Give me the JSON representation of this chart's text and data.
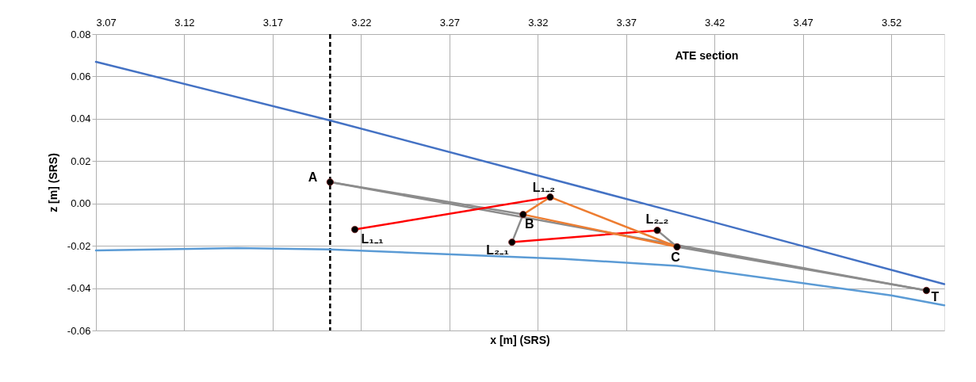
{
  "chart_data": {
    "type": "line",
    "xlabel": "x [m] (SRS)",
    "ylabel": "z [m] (SRS)",
    "xlim": [
      3.07,
      3.55
    ],
    "xticks": [
      3.07,
      3.12,
      3.17,
      3.22,
      3.27,
      3.32,
      3.37,
      3.42,
      3.47,
      3.52
    ],
    "ylim": [
      -0.06,
      0.08
    ],
    "yticks": [
      -0.06,
      -0.04,
      -0.02,
      {
        "value": 0,
        "label": "0.00"
      },
      0.02,
      0.04,
      0.06,
      0.08
    ],
    "grid": true,
    "line_style": "solid",
    "marker": "none",
    "series": [
      {
        "color": "#4472c4",
        "x": [
          3.07,
          3.2025,
          3.41,
          3.55
        ],
        "values": [
          0.0669,
          0.0392,
          -0.0067,
          -0.0381
        ]
      },
      {
        "color": "#5b9bd5",
        "x": [
          3.07,
          3.15,
          3.2025,
          3.335,
          3.3988,
          3.52,
          3.55
        ],
        "values": [
          -0.0222,
          -0.0211,
          -0.0217,
          -0.0262,
          -0.0295,
          -0.0434,
          -0.0481
        ]
      },
      {
        "color": "#8c8c8c",
        "x": [
          3.2025,
          3.5399
        ],
        "values": [
          0.0101,
          -0.0411
        ]
      },
      {
        "color": "#8c8c8c",
        "x": [
          3.2025,
          3.3117,
          3.3054
        ],
        "values": [
          0.0101,
          -0.0052,
          -0.0183
        ]
      },
      {
        "color": "#8c8c8c",
        "x": [
          3.3876,
          3.3988,
          3.5399
        ],
        "values": [
          -0.0127,
          -0.0205,
          -0.0411
        ]
      },
      {
        "color": "#ff0000",
        "x": [
          3.2165,
          3.327
        ],
        "values": [
          -0.0123,
          0.003
        ]
      },
      {
        "color": "#ff0000",
        "x": [
          3.3054,
          3.3876
        ],
        "values": [
          -0.0183,
          -0.0127
        ]
      },
      {
        "color": "#ed7d31",
        "x": [
          3.327,
          3.3117,
          3.3988
        ],
        "values": [
          0.003,
          -0.0052,
          -0.0205
        ]
      },
      {
        "color": "#ed7d31",
        "x": [
          3.327,
          3.3988
        ],
        "values": [
          0.003,
          -0.0205
        ]
      },
      {
        "type": "scatter",
        "marker": "circle",
        "color": "#000000",
        "x": [
          3.2025,
          3.2165,
          3.327,
          3.3117,
          3.3054,
          3.3876,
          3.3988,
          3.5399
        ],
        "values": [
          0.0101,
          -0.0123,
          0.003,
          -0.0052,
          -0.0183,
          -0.0127,
          -0.0205,
          -0.0411
        ]
      }
    ],
    "ref_lines": [
      {
        "axis": "x",
        "value": 3.2025,
        "color": "#000000",
        "line_style": "dashed"
      }
    ],
    "annotations": [
      "ATE section",
      {
        "text": "A",
        "x": 3.2025,
        "y": 0.0101
      },
      {
        "text": "L₁₋₁",
        "x": 3.2165,
        "y": -0.0123
      },
      {
        "text": "L₁₋₂",
        "x": 3.327,
        "y": 0.003
      },
      {
        "text": "B",
        "x": 3.3117,
        "y": -0.0052
      },
      {
        "text": "L₂₋₁",
        "x": 3.3054,
        "y": -0.0183
      },
      {
        "text": "L₂₋₂",
        "x": 3.3876,
        "y": -0.0127
      },
      {
        "text": "C",
        "x": 3.3988,
        "y": -0.0205
      },
      {
        "text": "T",
        "x": 3.5399,
        "y": -0.0411
      }
    ]
  }
}
